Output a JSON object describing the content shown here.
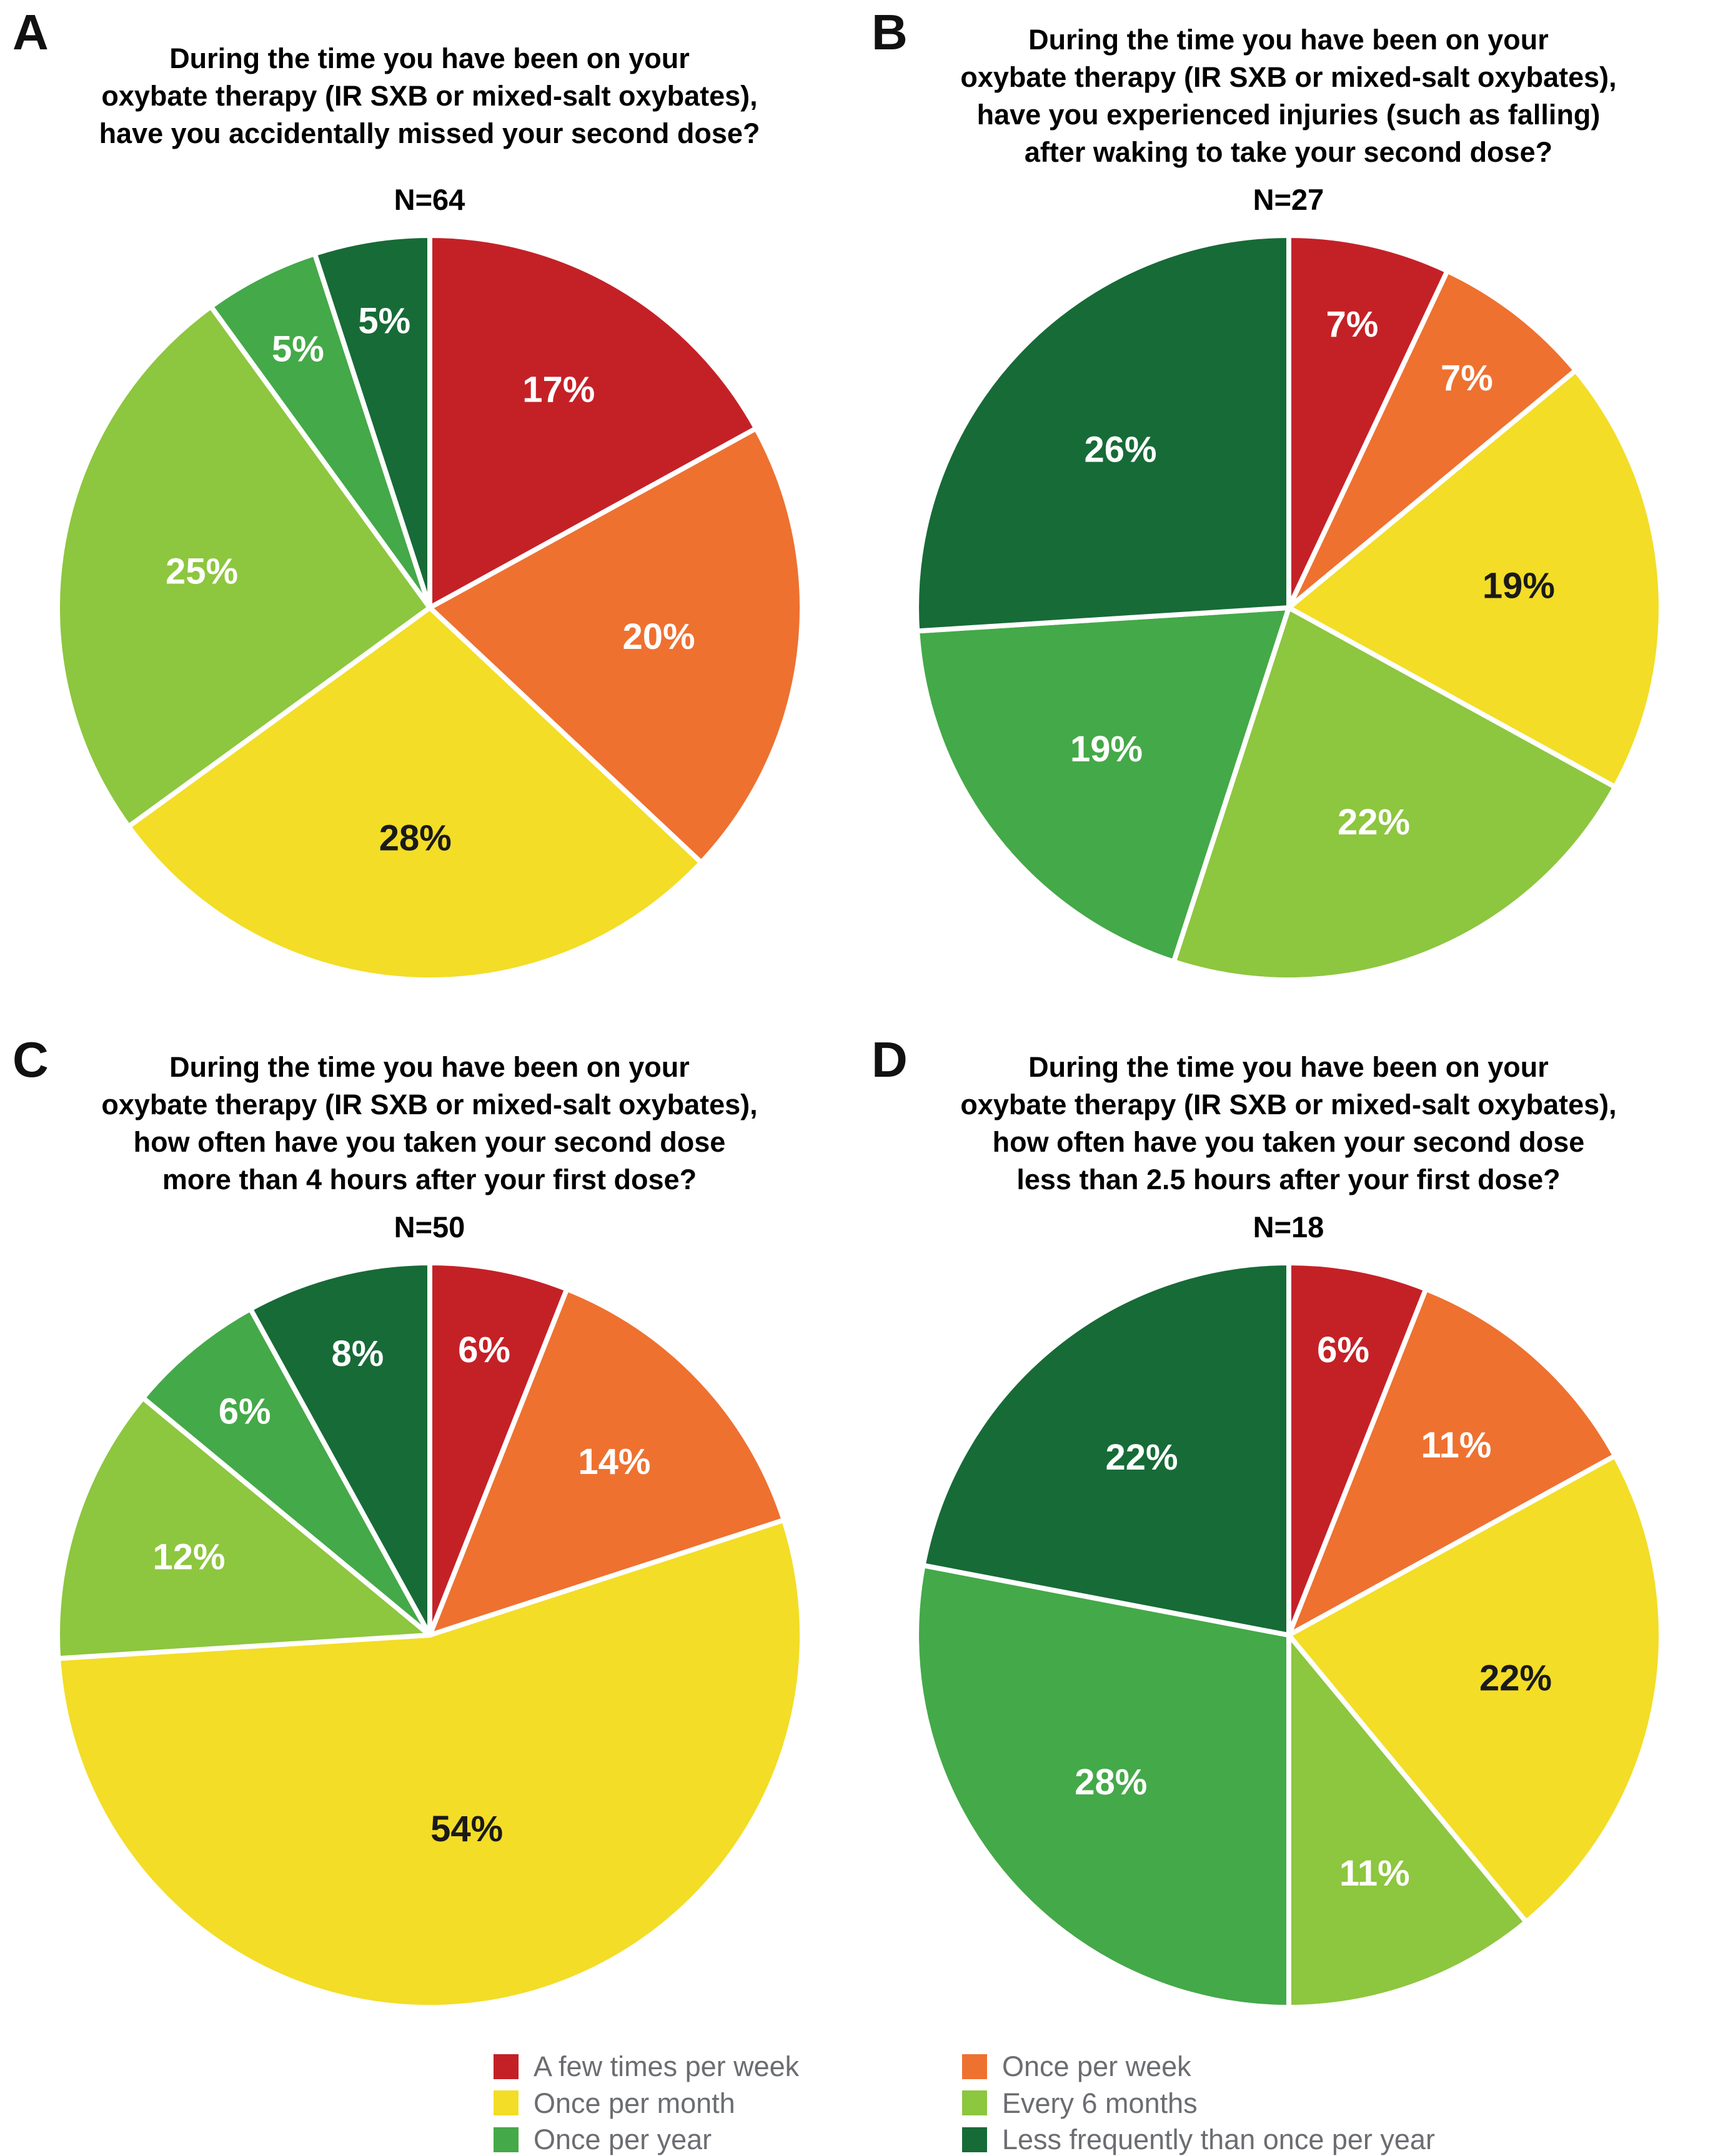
{
  "categories": [
    "A few times per week",
    "Once per week",
    "Once per month",
    "Every 6 months",
    "Once per year",
    "Less frequently than once per year"
  ],
  "palette": {
    "a_few_times_per_week": "#c42127",
    "once_per_week": "#ee7130",
    "once_per_month": "#f3dd26",
    "every_6_months": "#8dc63f",
    "once_per_year": "#44a948",
    "less_frequently_than_once_per_year": "#176b37"
  },
  "label_text_colors": {
    "default": "#ffffff",
    "on_yellow": "#1a1a1a"
  },
  "chart_data": [
    {
      "type": "pie",
      "panel": "A",
      "title_lines": [
        "During the time you have been on your",
        "oxybate therapy (IR SXB or mixed-salt oxybates),",
        "have you accidentally missed your second dose?"
      ],
      "n_label": "N=64",
      "n": 64,
      "categories": [
        "A few times per week",
        "Once per week",
        "Once per month",
        "Every 6 months",
        "Once per year",
        "Less frequently than once per year"
      ],
      "values": [
        17,
        20,
        28,
        25,
        5,
        5
      ],
      "labels": [
        "17%",
        "20%",
        "28%",
        "25%",
        "5%",
        "5%"
      ],
      "colors": [
        "#c42127",
        "#ee7130",
        "#f3dd26",
        "#8dc63f",
        "#44a948",
        "#176b37"
      ],
      "label_colors": [
        "#ffffff",
        "#ffffff",
        "#1a1a1a",
        "#ffffff",
        "#ffffff",
        "#ffffff"
      ],
      "start_angle_deg": 0,
      "direction": "clockwise"
    },
    {
      "type": "pie",
      "panel": "B",
      "title_lines": [
        "During the time you have been on your",
        "oxybate therapy (IR SXB or mixed-salt oxybates),",
        "have you experienced injuries (such as falling)",
        "after waking to take your second dose?"
      ],
      "n_label": "N=27",
      "n": 27,
      "categories": [
        "A few times per week",
        "Once per week",
        "Once per month",
        "Every 6 months",
        "Once per year",
        "Less frequently than once per year"
      ],
      "values": [
        7,
        7,
        19,
        22,
        19,
        26
      ],
      "labels": [
        "7%",
        "7%",
        "19%",
        "22%",
        "19%",
        "26%"
      ],
      "colors": [
        "#c42127",
        "#ee7130",
        "#f3dd26",
        "#8dc63f",
        "#44a948",
        "#176b37"
      ],
      "label_colors": [
        "#ffffff",
        "#ffffff",
        "#1a1a1a",
        "#ffffff",
        "#ffffff",
        "#ffffff"
      ],
      "start_angle_deg": 0,
      "direction": "clockwise"
    },
    {
      "type": "pie",
      "panel": "C",
      "title_lines": [
        "During the time you have been on your",
        "oxybate therapy (IR SXB or mixed-salt oxybates),",
        "how often have you taken your second dose",
        "more than 4 hours after your first dose?"
      ],
      "n_label": "N=50",
      "n": 50,
      "categories": [
        "A few times per week",
        "Once per week",
        "Once per month",
        "Every 6 months",
        "Once per year",
        "Less frequently than once per year"
      ],
      "values": [
        6,
        14,
        54,
        12,
        6,
        8
      ],
      "labels": [
        "6%",
        "14%",
        "54%",
        "12%",
        "6%",
        "8%"
      ],
      "colors": [
        "#c42127",
        "#ee7130",
        "#f3dd26",
        "#8dc63f",
        "#44a948",
        "#176b37"
      ],
      "label_colors": [
        "#ffffff",
        "#ffffff",
        "#1a1a1a",
        "#ffffff",
        "#ffffff",
        "#ffffff"
      ],
      "start_angle_deg": 0,
      "direction": "clockwise"
    },
    {
      "type": "pie",
      "panel": "D",
      "title_lines": [
        "During the time you have been on your",
        "oxybate therapy (IR SXB or mixed-salt oxybates),",
        "how often have you taken your second dose",
        "less than 2.5 hours after your first dose?"
      ],
      "n_label": "N=18",
      "n": 18,
      "categories": [
        "A few times per week",
        "Once per week",
        "Once per month",
        "Every 6 months",
        "Once per year",
        "Less frequently than once per year"
      ],
      "values": [
        6,
        11,
        22,
        11,
        28,
        22
      ],
      "labels": [
        "6%",
        "11%",
        "22%",
        "11%",
        "28%",
        "22%"
      ],
      "colors": [
        "#c42127",
        "#ee7130",
        "#f3dd26",
        "#8dc63f",
        "#44a948",
        "#176b37"
      ],
      "label_colors": [
        "#ffffff",
        "#ffffff",
        "#1a1a1a",
        "#ffffff",
        "#ffffff",
        "#ffffff"
      ],
      "start_angle_deg": 0,
      "direction": "clockwise"
    }
  ],
  "legend": {
    "columns": [
      [
        {
          "label": "A few times per week",
          "color": "#c42127"
        },
        {
          "label": "Once per month",
          "color": "#f3dd26"
        },
        {
          "label": "Once per year",
          "color": "#44a948"
        }
      ],
      [
        {
          "label": "Once per week",
          "color": "#ee7130"
        },
        {
          "label": "Every 6 months",
          "color": "#8dc63f"
        },
        {
          "label": "Less frequently than once per year",
          "color": "#176b37"
        }
      ]
    ]
  }
}
